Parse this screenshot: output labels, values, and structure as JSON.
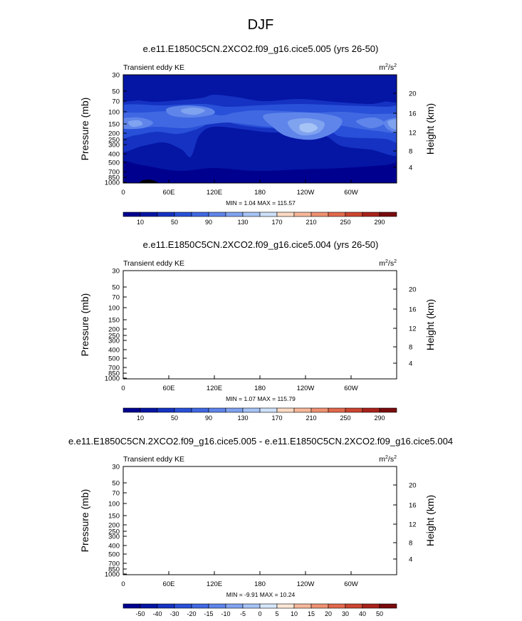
{
  "page_title": "DJF",
  "chart_data": [
    {
      "type": "heatmap",
      "title": "e.e11.E1850C5CN.2XCO2.f09_g16.cice5.005 (yrs 26-50)",
      "variable": "Transient eddy KE",
      "units_base": "m",
      "units_exp": "2",
      "units_sep": "/s",
      "units_exp2": "2",
      "ylabel": "Pressure (mb)",
      "ylabel_right": "Height (km)",
      "x_ticks": [
        "0",
        "60E",
        "120E",
        "180",
        "120W",
        "60W"
      ],
      "y_ticks": [
        "30",
        "50",
        "70",
        "100",
        "150",
        "200",
        "250",
        "300",
        "400",
        "500",
        "700",
        "850",
        "1000"
      ],
      "y_ticks_right": [
        "20",
        "16",
        "12",
        "8",
        "4"
      ],
      "stats": "MIN =   1.04  MAX = 115.57",
      "colorbar_labels": [
        "10",
        "50",
        "90",
        "130",
        "170",
        "210",
        "250",
        "290"
      ],
      "colorbar_levels": 16,
      "palette": [
        "#00008f",
        "#0515a4",
        "#1532c2",
        "#2850d8",
        "#4068e2",
        "#5f85ea",
        "#80a3f0",
        "#a6c3f5",
        "#cde0fa",
        "#fbd9c2",
        "#f6b79a",
        "#ee9171",
        "#e2694c",
        "#cc4530",
        "#a9221b",
        "#7a0b0d"
      ],
      "zones": [
        {
          "level": 4,
          "name": "jet-core-shading"
        },
        {
          "level": 6,
          "name": "jet-core-light"
        },
        {
          "level": 7,
          "name": "jet-core-max"
        }
      ]
    },
    {
      "type": "heatmap",
      "title": "e.e11.E1850C5CN.2XCO2.f09_g16.cice5.004 (yrs 26-50)",
      "variable": "Transient eddy KE",
      "units_base": "m",
      "units_exp": "2",
      "units_sep": "/s",
      "units_exp2": "2",
      "ylabel": "Pressure (mb)",
      "ylabel_right": "Height (km)",
      "x_ticks": [
        "0",
        "60E",
        "120E",
        "180",
        "120W",
        "60W"
      ],
      "y_ticks": [
        "30",
        "50",
        "70",
        "100",
        "150",
        "200",
        "250",
        "300",
        "400",
        "500",
        "700",
        "850",
        "1000"
      ],
      "y_ticks_right": [
        "20",
        "16",
        "12",
        "8",
        "4"
      ],
      "stats": "MIN =   1.07  MAX = 115.79",
      "colorbar_labels": [
        "10",
        "50",
        "90",
        "130",
        "170",
        "210",
        "250",
        "290"
      ],
      "colorbar_levels": 16,
      "palette": [
        "#00008f",
        "#0515a4",
        "#1532c2",
        "#2850d8",
        "#4068e2",
        "#5f85ea",
        "#80a3f0",
        "#a6c3f5",
        "#cde0fa",
        "#fbd9c2",
        "#f6b79a",
        "#ee9171",
        "#e2694c",
        "#cc4530",
        "#a9221b",
        "#7a0b0d"
      ]
    },
    {
      "type": "heatmap",
      "title": "e.e11.E1850C5CN.2XCO2.f09_g16.cice5.005 - e.e11.E1850C5CN.2XCO2.f09_g16.cice5.004",
      "variable": "Transient eddy KE",
      "units_base": "m",
      "units_exp": "2",
      "units_sep": "/s",
      "units_exp2": "2",
      "ylabel": "Pressure (mb)",
      "ylabel_right": "Height (km)",
      "x_ticks": [
        "0",
        "60E",
        "120E",
        "180",
        "120W",
        "60W"
      ],
      "y_ticks": [
        "30",
        "50",
        "70",
        "100",
        "150",
        "200",
        "250",
        "300",
        "400",
        "500",
        "700",
        "850",
        "1000"
      ],
      "y_ticks_right": [
        "20",
        "16",
        "12",
        "8",
        "4"
      ],
      "stats": "MIN =  -9.91  MAX =  10.24",
      "colorbar_labels": [
        "-50",
        "-40",
        "-30",
        "-20",
        "-15",
        "-10",
        "-5",
        "0",
        "5",
        "10",
        "15",
        "20",
        "30",
        "40",
        "50"
      ],
      "colorbar_levels": 16,
      "palette": [
        "#00008f",
        "#0515a4",
        "#1532c2",
        "#2850d8",
        "#4068e2",
        "#5f85ea",
        "#80a3f0",
        "#a6c3f5",
        "#d6e7fb",
        "#fde7d6",
        "#f6b79a",
        "#ee9171",
        "#e2694c",
        "#cc4530",
        "#a9221b",
        "#7a0b0d"
      ]
    }
  ]
}
